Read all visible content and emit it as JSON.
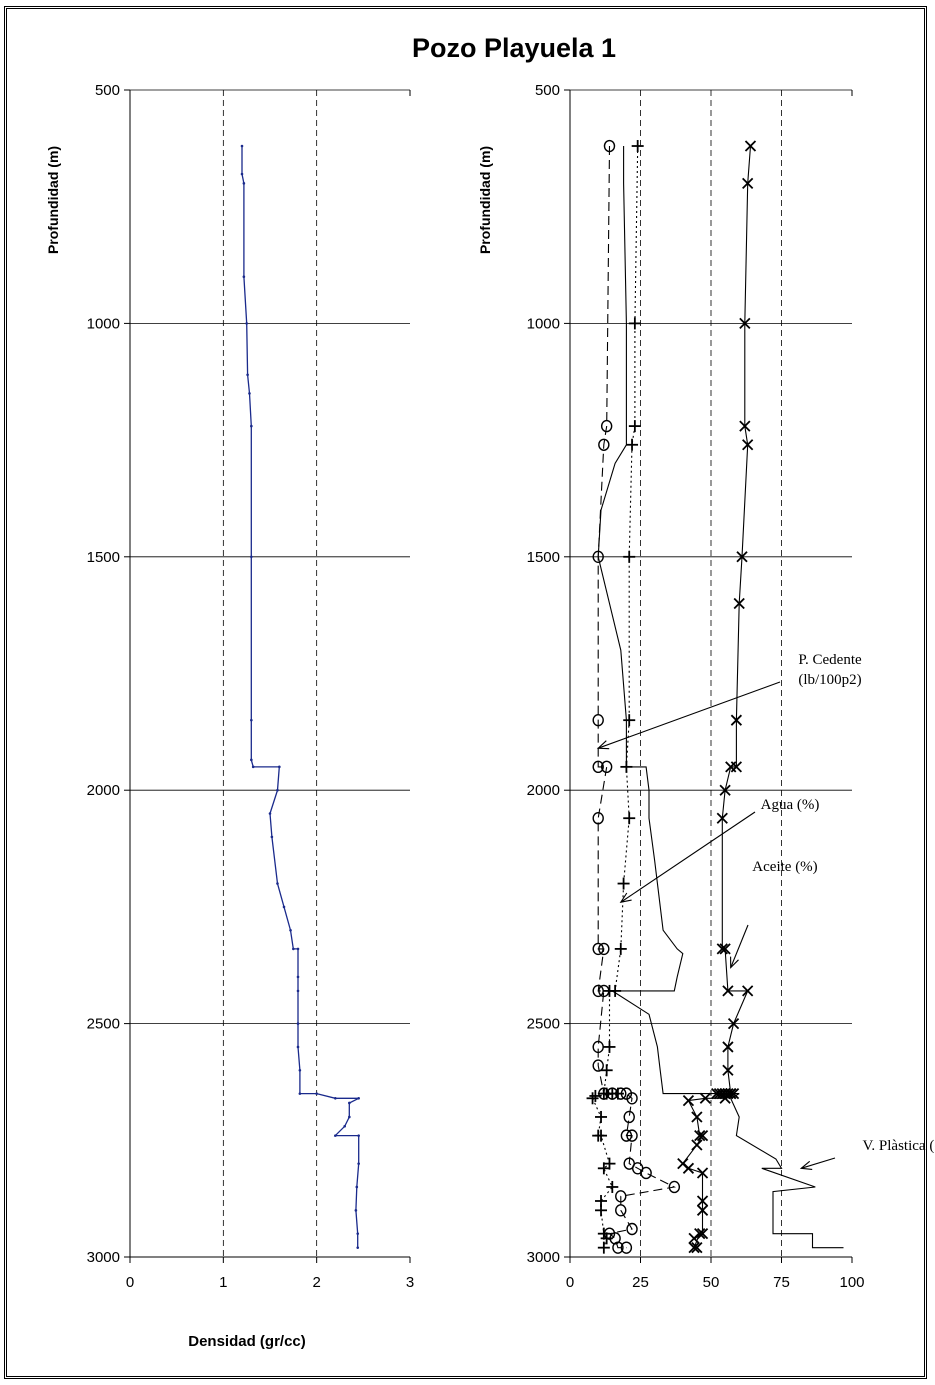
{
  "chart_data": [
    {
      "type": "line",
      "title": "Pozo Playuela 1",
      "xlabel": "Densidad (gr/cc)",
      "ylabel": "Profundidad (m)",
      "xlim": [
        0,
        3
      ],
      "ylim": [
        3000,
        500
      ],
      "x_ticks": [
        "0",
        "1",
        "2",
        "3"
      ],
      "y_ticks": [
        "500",
        "1000",
        "1500",
        "2000",
        "2500",
        "3000"
      ],
      "grid": "vertical dashed, horizontal solid",
      "series": [
        {
          "color": "#1a2a8c",
          "points": [
            [
              1.2,
              620
            ],
            [
              1.2,
              680
            ],
            [
              1.22,
              700
            ],
            [
              1.22,
              900
            ],
            [
              1.25,
              1000
            ],
            [
              1.26,
              1110
            ],
            [
              1.28,
              1150
            ],
            [
              1.3,
              1220
            ],
            [
              1.3,
              1500
            ],
            [
              1.3,
              1850
            ],
            [
              1.3,
              1935
            ],
            [
              1.32,
              1950
            ],
            [
              1.6,
              1950
            ],
            [
              1.58,
              2000
            ],
            [
              1.5,
              2050
            ],
            [
              1.52,
              2100
            ],
            [
              1.58,
              2200
            ],
            [
              1.65,
              2250
            ],
            [
              1.72,
              2300
            ],
            [
              1.75,
              2340
            ],
            [
              1.8,
              2340
            ],
            [
              1.8,
              2400
            ],
            [
              1.8,
              2430
            ],
            [
              1.8,
              2500
            ],
            [
              1.8,
              2550
            ],
            [
              1.82,
              2600
            ],
            [
              1.82,
              2650
            ],
            [
              2.0,
              2650
            ],
            [
              2.2,
              2660
            ],
            [
              2.45,
              2660
            ],
            [
              2.35,
              2670
            ],
            [
              2.35,
              2700
            ],
            [
              2.3,
              2720
            ],
            [
              2.2,
              2740
            ],
            [
              2.45,
              2740
            ],
            [
              2.45,
              2800
            ],
            [
              2.43,
              2850
            ],
            [
              2.42,
              2900
            ],
            [
              2.44,
              2950
            ],
            [
              2.44,
              2980
            ]
          ]
        }
      ]
    },
    {
      "type": "line",
      "ylabel": "Profundidad (m)",
      "xlim": [
        0,
        100
      ],
      "ylim": [
        3000,
        500
      ],
      "x_ticks": [
        "0",
        "25",
        "50",
        "75",
        "100"
      ],
      "y_ticks": [
        "500",
        "1000",
        "1500",
        "2000",
        "2500",
        "3000"
      ],
      "grid": "vertical dashed, horizontal solid",
      "annotations": [
        {
          "text": "P. Cedente",
          "text2": "(lb/100p2)",
          "x": 10,
          "y": 1910
        },
        {
          "text": "Agua (%)",
          "x": 18,
          "y": 2240
        },
        {
          "text": "Aceite (%)",
          "x": 57,
          "y": 2380
        },
        {
          "text": "V. Plàstica (cp)",
          "x": 82,
          "y": 2810
        }
      ],
      "series": [
        {
          "name": "Aceite (%)",
          "marker": "x",
          "line": "solid",
          "points": [
            [
              64,
              620
            ],
            [
              63,
              700
            ],
            [
              62,
              1000
            ],
            [
              62,
              1220
            ],
            [
              63,
              1260
            ],
            [
              61,
              1500
            ],
            [
              60,
              1600
            ],
            [
              59,
              1850
            ],
            [
              59,
              1950
            ],
            [
              57,
              1950
            ],
            [
              55,
              2000
            ],
            [
              54,
              2060
            ],
            [
              54,
              2340
            ],
            [
              55,
              2340
            ],
            [
              56,
              2430
            ],
            [
              63,
              2430
            ],
            [
              58,
              2500
            ],
            [
              56,
              2550
            ],
            [
              56,
              2600
            ],
            [
              57,
              2650
            ],
            [
              52,
              2650
            ],
            [
              53,
              2650
            ],
            [
              54,
              2650
            ],
            [
              55,
              2650
            ],
            [
              56,
              2650
            ],
            [
              57,
              2650
            ],
            [
              58,
              2650
            ],
            [
              55,
              2660
            ],
            [
              48,
              2660
            ],
            [
              42,
              2665
            ],
            [
              45,
              2700
            ],
            [
              46,
              2740
            ],
            [
              47,
              2740
            ],
            [
              45,
              2760
            ],
            [
              40,
              2800
            ],
            [
              42,
              2810
            ],
            [
              47,
              2820
            ],
            [
              47,
              2880
            ],
            [
              47,
              2900
            ],
            [
              47,
              2950
            ],
            [
              44,
              2960
            ],
            [
              46,
              2950
            ],
            [
              44,
              2980
            ],
            [
              45,
              2980
            ]
          ]
        },
        {
          "name": "Agua (%)",
          "marker": "+",
          "line": "dotted",
          "points": [
            [
              24,
              620
            ],
            [
              23,
              1000
            ],
            [
              23,
              1220
            ],
            [
              22,
              1260
            ],
            [
              21,
              1500
            ],
            [
              21,
              1850
            ],
            [
              20,
              1950
            ],
            [
              21,
              2060
            ],
            [
              19,
              2200
            ],
            [
              18,
              2340
            ],
            [
              16,
              2430
            ],
            [
              14,
              2430
            ],
            [
              14,
              2550
            ],
            [
              13,
              2600
            ],
            [
              12,
              2650
            ],
            [
              13,
              2650
            ],
            [
              15,
              2650
            ],
            [
              17,
              2650
            ],
            [
              9,
              2655
            ],
            [
              8,
              2660
            ],
            [
              11,
              2700
            ],
            [
              10,
              2740
            ],
            [
              11,
              2740
            ],
            [
              14,
              2800
            ],
            [
              12,
              2810
            ],
            [
              15,
              2850
            ],
            [
              11,
              2880
            ],
            [
              11,
              2900
            ],
            [
              12,
              2950
            ],
            [
              13,
              2960
            ],
            [
              12,
              2980
            ]
          ]
        },
        {
          "name": "P. Cedente (lb/100p2)",
          "marker": "o",
          "line": "dashed",
          "points": [
            [
              14,
              620
            ],
            [
              13,
              1220
            ],
            [
              12,
              1260
            ],
            [
              10,
              1500
            ],
            [
              10,
              1850
            ],
            [
              10,
              1950
            ],
            [
              13,
              1950
            ],
            [
              10,
              2060
            ],
            [
              10,
              2340
            ],
            [
              12,
              2340
            ],
            [
              10,
              2430
            ],
            [
              12,
              2430
            ],
            [
              10,
              2550
            ],
            [
              10,
              2590
            ],
            [
              12,
              2650
            ],
            [
              15,
              2650
            ],
            [
              18,
              2650
            ],
            [
              20,
              2650
            ],
            [
              22,
              2660
            ],
            [
              21,
              2700
            ],
            [
              20,
              2740
            ],
            [
              22,
              2740
            ],
            [
              21,
              2800
            ],
            [
              24,
              2810
            ],
            [
              27,
              2820
            ],
            [
              37,
              2850
            ],
            [
              18,
              2870
            ],
            [
              18,
              2900
            ],
            [
              22,
              2940
            ],
            [
              14,
              2950
            ],
            [
              16,
              2960
            ],
            [
              17,
              2980
            ],
            [
              20,
              2980
            ]
          ]
        },
        {
          "name": "V. Plàstica (cp)",
          "marker": "none",
          "line": "solid",
          "points": [
            [
              19,
              620
            ],
            [
              19,
              700
            ],
            [
              20,
              1000
            ],
            [
              20,
              1220
            ],
            [
              20,
              1260
            ],
            [
              16,
              1300
            ],
            [
              11,
              1400
            ],
            [
              10,
              1500
            ],
            [
              14,
              1600
            ],
            [
              18,
              1700
            ],
            [
              20,
              1850
            ],
            [
              20,
              1950
            ],
            [
              27,
              1950
            ],
            [
              28,
              2000
            ],
            [
              28,
              2060
            ],
            [
              30,
              2150
            ],
            [
              33,
              2300
            ],
            [
              38,
              2340
            ],
            [
              40,
              2350
            ],
            [
              38,
              2400
            ],
            [
              37,
              2430
            ],
            [
              15,
              2430
            ],
            [
              28,
              2480
            ],
            [
              31,
              2550
            ],
            [
              32,
              2600
            ],
            [
              33,
              2650
            ],
            [
              60,
              2650
            ],
            [
              57,
              2660
            ],
            [
              60,
              2700
            ],
            [
              59,
              2740
            ],
            [
              73,
              2790
            ],
            [
              75,
              2810
            ],
            [
              68,
              2810
            ],
            [
              87,
              2850
            ],
            [
              72,
              2860
            ],
            [
              72,
              2900
            ],
            [
              72,
              2950
            ],
            [
              86,
              2950
            ],
            [
              86,
              2980
            ],
            [
              97,
              2980
            ]
          ]
        }
      ]
    }
  ]
}
